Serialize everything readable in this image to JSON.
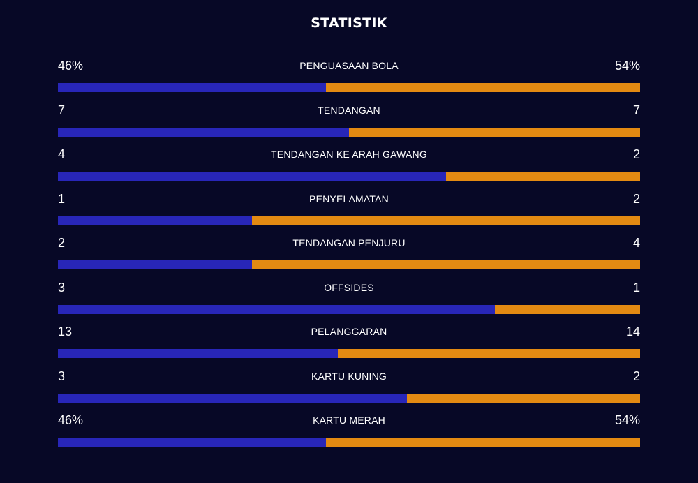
{
  "title": "STATISTIK",
  "colors": {
    "background": "#070826",
    "home": "#2826b8",
    "away": "#e38a12"
  },
  "stats": [
    {
      "label": "PENGUASAAN BOLA",
      "home": "46%",
      "away": "54%",
      "home_share": 0.46
    },
    {
      "label": "TENDANGAN",
      "home": "7",
      "away": "7",
      "home_share": 0.5
    },
    {
      "label": "TENDANGAN KE ARAH GAWANG",
      "home": "4",
      "away": "2",
      "home_share": 0.667
    },
    {
      "label": "PENYELAMATAN",
      "home": "1",
      "away": "2",
      "home_share": 0.333
    },
    {
      "label": "TENDANGAN PENJURU",
      "home": "2",
      "away": "4",
      "home_share": 0.333
    },
    {
      "label": "OFFSIDES",
      "home": "3",
      "away": "1",
      "home_share": 0.75
    },
    {
      "label": "PELANGGARAN",
      "home": "13",
      "away": "14",
      "home_share": 0.481
    },
    {
      "label": "KARTU KUNING",
      "home": "3",
      "away": "2",
      "home_share": 0.6
    },
    {
      "label": "KARTU MERAH",
      "home": "46%",
      "away": "54%",
      "home_share": 0.46
    }
  ]
}
